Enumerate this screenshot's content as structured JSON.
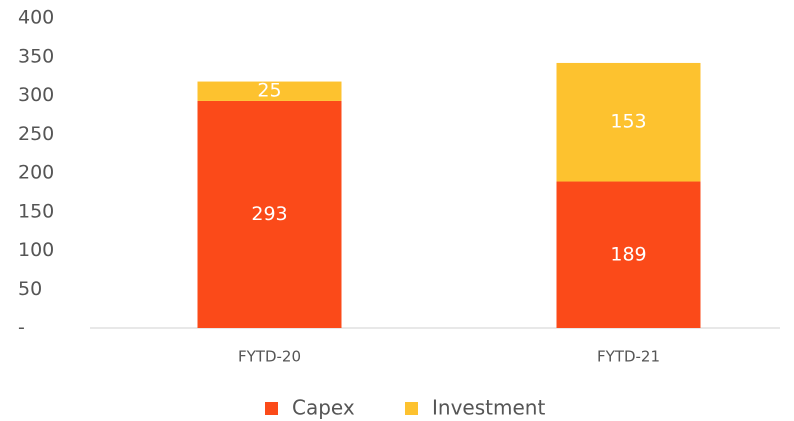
{
  "chart_data": {
    "type": "stacked_bar",
    "categories": [
      "FYTD-20",
      "FYTD-21"
    ],
    "series": [
      {
        "name": "Capex",
        "color": "#fb4a19",
        "values": [
          293,
          189
        ]
      },
      {
        "name": "Investment",
        "color": "#fdc22f",
        "values": [
          25,
          153
        ]
      }
    ],
    "ylim": [
      0,
      400
    ],
    "yticks": [
      {
        "value": 0,
        "label": "-"
      },
      50,
      100,
      150,
      200,
      250,
      300,
      350,
      400
    ],
    "legend": "bottom"
  }
}
